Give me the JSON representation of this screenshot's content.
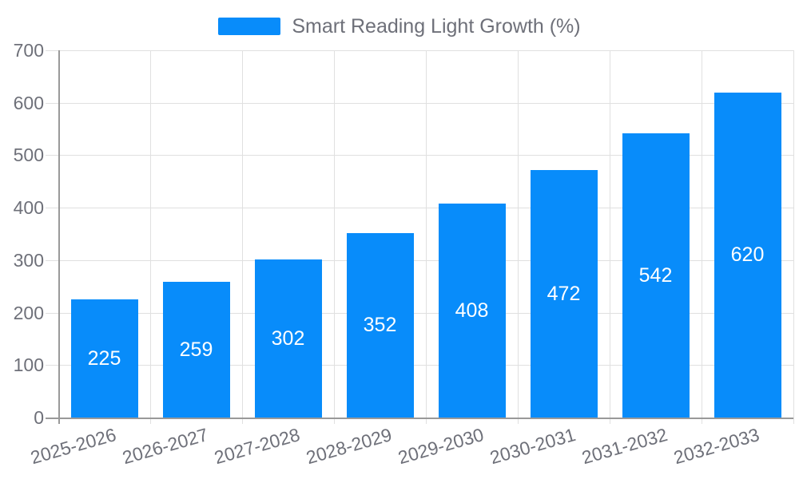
{
  "chart_data": {
    "type": "bar",
    "title": "Smart Reading Light Growth (%)",
    "categories": [
      "2025-2026",
      "2026-2027",
      "2027-2028",
      "2028-2029",
      "2029-2030",
      "2030-2031",
      "2031-2032",
      "2032-2033"
    ],
    "values": [
      225,
      259,
      302,
      352,
      408,
      472,
      542,
      620
    ],
    "xlabel": "",
    "ylabel": "",
    "ylim": [
      0,
      700
    ],
    "y_ticks": [
      0,
      100,
      200,
      300,
      400,
      500,
      600,
      700
    ],
    "grid": true,
    "legend_position": "top",
    "legend_label": "Smart Reading Light Growth (%)",
    "bar_color": "#088cfa",
    "bar_label_color": "#ffffff",
    "axis_text_color": "#6e7079",
    "grid_color": "#e0e0e0",
    "axis_line_color": "#999999",
    "background_color": "#ffffff"
  }
}
